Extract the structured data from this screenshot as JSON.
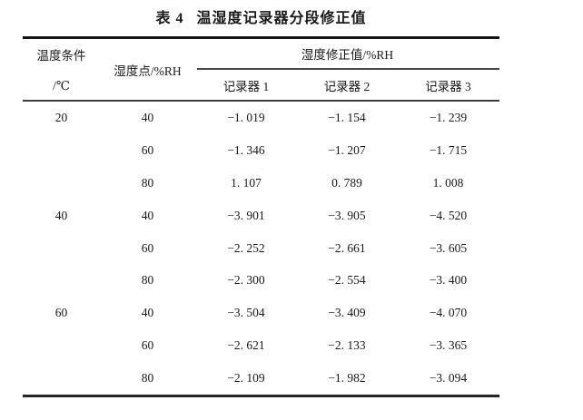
{
  "page": {
    "background_color": "#ffffff",
    "text_color": "#1a1a1a",
    "rule_color": "#1c1c1c"
  },
  "table": {
    "caption": {
      "label": "表 4",
      "title": "温湿度记录器分段修正值"
    },
    "header": {
      "temp_condition_line1": "温度条件",
      "temp_condition_line2": "/℃",
      "humidity_point": "湿度点/%RH",
      "correction_group": "湿度修正值/%RH",
      "recorders": [
        "记录器 1",
        "记录器 2",
        "记录器 3"
      ]
    },
    "rows": [
      {
        "temp": "20",
        "rh": "40",
        "r1": "−1. 019",
        "r2": "−1. 154",
        "r3": "−1. 239"
      },
      {
        "temp": "",
        "rh": "60",
        "r1": "−1. 346",
        "r2": "−1. 207",
        "r3": "−1. 715"
      },
      {
        "temp": "",
        "rh": "80",
        "r1": "1. 107",
        "r2": "0. 789",
        "r3": "1. 008"
      },
      {
        "temp": "40",
        "rh": "40",
        "r1": "−3. 901",
        "r2": "−3. 905",
        "r3": "−4. 520"
      },
      {
        "temp": "",
        "rh": "60",
        "r1": "−2. 252",
        "r2": "−2. 661",
        "r3": "−3. 605"
      },
      {
        "temp": "",
        "rh": "80",
        "r1": "−2. 300",
        "r2": "−2. 554",
        "r3": "−3. 400"
      },
      {
        "temp": "60",
        "rh": "40",
        "r1": "−3. 504",
        "r2": "−3. 409",
        "r3": "−4. 070"
      },
      {
        "temp": "",
        "rh": "60",
        "r1": "−2. 621",
        "r2": "−2. 133",
        "r3": "−3. 365"
      },
      {
        "temp": "",
        "rh": "80",
        "r1": "−2. 109",
        "r2": "−1. 982",
        "r3": "−3. 094"
      }
    ]
  },
  "chart_data": {
    "type": "table",
    "title": "表4 温湿度记录器分段修正值",
    "columns": [
      "温度条件/℃",
      "湿度点/%RH",
      "记录器1 湿度修正值/%RH",
      "记录器2 湿度修正值/%RH",
      "记录器3 湿度修正值/%RH"
    ],
    "rows": [
      [
        20,
        40,
        -1.019,
        -1.154,
        -1.239
      ],
      [
        20,
        60,
        -1.346,
        -1.207,
        -1.715
      ],
      [
        20,
        80,
        1.107,
        0.789,
        1.008
      ],
      [
        40,
        40,
        -3.901,
        -3.905,
        -4.52
      ],
      [
        40,
        60,
        -2.252,
        -2.661,
        -3.605
      ],
      [
        40,
        80,
        -2.3,
        -2.554,
        -3.4
      ],
      [
        60,
        40,
        -3.504,
        -3.409,
        -4.07
      ],
      [
        60,
        60,
        -2.621,
        -2.133,
        -3.365
      ],
      [
        60,
        80,
        -2.109,
        -1.982,
        -3.094
      ]
    ]
  }
}
